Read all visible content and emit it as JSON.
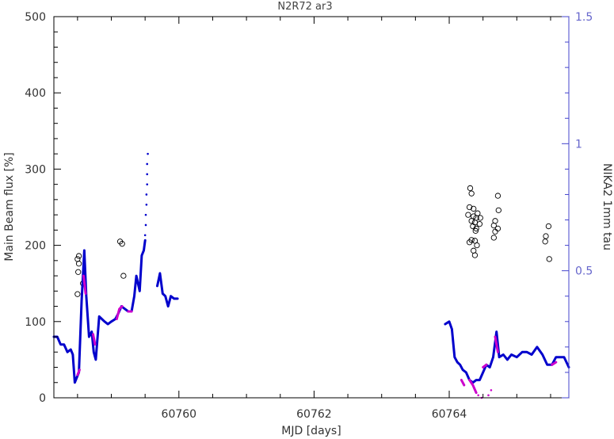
{
  "chart_data": {
    "type": "line",
    "title": "N2R72 ar3",
    "xlabel": "MJD [days]",
    "ylabel": "Main Beam flux [%]",
    "y2label": "NIKA2 1mm tau",
    "xlim": [
      60758.15,
      60765.77
    ],
    "ylim": [
      0,
      500
    ],
    "y2lim": [
      0.0,
      1.5
    ],
    "x_ticks": [
      60760,
      60762,
      60764
    ],
    "x_tick_labels": [
      "60760",
      "60762",
      "60764"
    ],
    "y_ticks": [
      0,
      100,
      200,
      300,
      400,
      500
    ],
    "y_tick_labels": [
      "0",
      "100",
      "200",
      "300",
      "400",
      "500"
    ],
    "y2_ticks": [
      0.5,
      1.0,
      1.5
    ],
    "y2_tick_labels": [
      "0.5",
      "1",
      "1.5"
    ],
    "colors": {
      "axes": "#000000",
      "right_axis": "#4444cc",
      "tau_blue": "#0000cc",
      "tau_magenta": "#cc00cc",
      "flux_points": "#000000"
    },
    "series": [
      {
        "kind": "scatter",
        "axis": "left",
        "values": [
          [
            60758.52,
            186
          ],
          [
            60758.5,
            182
          ],
          [
            60758.52,
            176
          ],
          [
            60758.51,
            165
          ],
          [
            60758.58,
            150
          ],
          [
            60758.5,
            136
          ],
          [
            60759.13,
            205
          ],
          [
            60759.16,
            202
          ],
          [
            60759.18,
            160
          ],
          [
            60764.31,
            275
          ],
          [
            60764.33,
            268
          ],
          [
            60764.3,
            250
          ],
          [
            60764.36,
            248
          ],
          [
            60764.42,
            242
          ],
          [
            60764.28,
            240
          ],
          [
            60764.36,
            238
          ],
          [
            60764.4,
            236
          ],
          [
            60764.46,
            236
          ],
          [
            60764.33,
            232
          ],
          [
            60764.38,
            230
          ],
          [
            60764.45,
            228
          ],
          [
            60764.35,
            225
          ],
          [
            60764.4,
            222
          ],
          [
            60764.39,
            219
          ],
          [
            60764.33,
            207
          ],
          [
            60764.38,
            206
          ],
          [
            60764.3,
            204
          ],
          [
            60764.41,
            200
          ],
          [
            60764.36,
            193
          ],
          [
            60764.38,
            187
          ],
          [
            60764.72,
            265
          ],
          [
            60764.73,
            246
          ],
          [
            60764.68,
            232
          ],
          [
            60764.72,
            222
          ],
          [
            60764.66,
            226
          ],
          [
            60764.68,
            218
          ],
          [
            60764.66,
            210
          ],
          [
            60765.47,
            225
          ],
          [
            60765.43,
            212
          ],
          [
            60765.42,
            205
          ],
          [
            60765.48,
            182
          ]
        ]
      },
      {
        "kind": "line",
        "axis": "right",
        "color": "#0000cc",
        "segments": [
          [
            [
              60758.15,
              0.24
            ],
            [
              60758.2,
              0.24
            ],
            [
              60758.25,
              0.21
            ],
            [
              60758.3,
              0.21
            ],
            [
              60758.35,
              0.18
            ],
            [
              60758.4,
              0.19
            ],
            [
              60758.43,
              0.17
            ],
            [
              60758.46,
              0.06
            ],
            [
              60758.49,
              0.08
            ],
            [
              60758.52,
              0.1
            ],
            [
              60758.56,
              0.38
            ],
            [
              60758.6,
              0.58
            ],
            [
              60758.63,
              0.4
            ],
            [
              60758.67,
              0.24
            ],
            [
              60758.71,
              0.26
            ],
            [
              60758.74,
              0.18
            ],
            [
              60758.77,
              0.15
            ],
            [
              60758.82,
              0.32
            ],
            [
              60758.86,
              0.31
            ],
            [
              60758.9,
              0.3
            ],
            [
              60758.95,
              0.29
            ],
            [
              60759.0,
              0.3
            ],
            [
              60759.06,
              0.31
            ],
            [
              60759.1,
              0.33
            ],
            [
              60759.15,
              0.36
            ],
            [
              60759.2,
              0.35
            ],
            [
              60759.25,
              0.34
            ],
            [
              60759.3,
              0.34
            ],
            [
              60759.34,
              0.4
            ],
            [
              60759.37,
              0.48
            ],
            [
              60759.42,
              0.42
            ],
            [
              60759.45,
              0.56
            ],
            [
              60759.48,
              0.58
            ],
            [
              60759.5,
              0.62
            ]
          ],
          [
            [
              60759.68,
              0.44
            ],
            [
              60759.72,
              0.49
            ],
            [
              60759.76,
              0.41
            ],
            [
              60759.8,
              0.4
            ],
            [
              60759.84,
              0.36
            ],
            [
              60759.88,
              0.4
            ],
            [
              60759.93,
              0.39
            ],
            [
              60759.98,
              0.39
            ]
          ],
          [
            [
              60763.94,
              0.29
            ],
            [
              60764.0,
              0.3
            ],
            [
              60764.04,
              0.27
            ],
            [
              60764.08,
              0.16
            ],
            [
              60764.12,
              0.14
            ],
            [
              60764.16,
              0.13
            ],
            [
              60764.2,
              0.11
            ],
            [
              60764.25,
              0.1
            ],
            [
              60764.3,
              0.07
            ],
            [
              60764.35,
              0.06
            ],
            [
              60764.4,
              0.07
            ],
            [
              60764.45,
              0.07
            ],
            [
              60764.5,
              0.1
            ],
            [
              60764.55,
              0.13
            ],
            [
              60764.6,
              0.12
            ],
            [
              60764.65,
              0.16
            ],
            [
              60764.7,
              0.26
            ],
            [
              60764.74,
              0.16
            ],
            [
              60764.8,
              0.17
            ],
            [
              60764.86,
              0.15
            ],
            [
              60764.92,
              0.17
            ],
            [
              60765.0,
              0.16
            ],
            [
              60765.08,
              0.18
            ],
            [
              60765.15,
              0.18
            ],
            [
              60765.22,
              0.17
            ],
            [
              60765.3,
              0.2
            ],
            [
              60765.38,
              0.17
            ],
            [
              60765.45,
              0.13
            ],
            [
              60765.52,
              0.13
            ],
            [
              60765.58,
              0.16
            ],
            [
              60765.64,
              0.16
            ],
            [
              60765.7,
              0.16
            ],
            [
              60765.77,
              0.12
            ]
          ]
        ]
      },
      {
        "kind": "line",
        "axis": "right",
        "color": "#cc00cc",
        "segments": [
          [
            [
              60758.5,
              0.09
            ],
            [
              60758.53,
              0.11
            ]
          ],
          [
            [
              60758.59,
              0.48
            ],
            [
              60758.62,
              0.41
            ]
          ],
          [
            [
              60758.73,
              0.25
            ],
            [
              60758.76,
              0.21
            ]
          ],
          [
            [
              60759.08,
              0.31
            ],
            [
              60759.12,
              0.35
            ],
            [
              60759.16,
              0.36
            ]
          ],
          [
            [
              60759.25,
              0.34
            ],
            [
              60759.3,
              0.34
            ]
          ],
          [
            [
              60764.18,
              0.07
            ],
            [
              60764.22,
              0.05
            ]
          ],
          [
            [
              60764.3,
              0.07
            ],
            [
              60764.35,
              0.05
            ],
            [
              60764.4,
              0.02
            ]
          ],
          [
            [
              60764.5,
              0.12
            ],
            [
              60764.55,
              0.13
            ]
          ],
          [
            [
              60764.68,
              0.24
            ],
            [
              60764.72,
              0.18
            ]
          ],
          [
            [
              60765.52,
              0.13
            ],
            [
              60765.58,
              0.14
            ]
          ]
        ]
      },
      {
        "kind": "dots",
        "axis": "right",
        "color": "#0000cc",
        "values": [
          [
            60759.5,
            0.64
          ],
          [
            60759.51,
            0.68
          ],
          [
            60759.51,
            0.72
          ],
          [
            60759.52,
            0.76
          ],
          [
            60759.52,
            0.8
          ],
          [
            60759.53,
            0.84
          ],
          [
            60759.53,
            0.88
          ],
          [
            60759.53,
            0.92
          ],
          [
            60759.54,
            0.96
          ]
        ]
      },
      {
        "kind": "dots",
        "axis": "right",
        "color": "#cc00cc",
        "values": [
          [
            60764.43,
            0.01
          ],
          [
            60764.48,
            0.0
          ],
          [
            60764.58,
            0.01
          ],
          [
            60764.62,
            0.03
          ]
        ]
      }
    ]
  }
}
